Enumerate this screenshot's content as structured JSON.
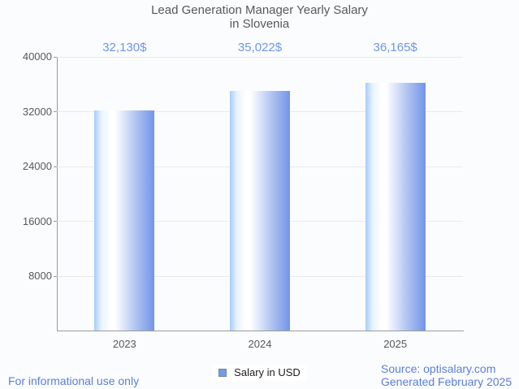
{
  "title": {
    "line1": "Lead Generation Manager Yearly Salary",
    "line2": "in Slovenia"
  },
  "chart_data": {
    "type": "bar",
    "categories": [
      "2023",
      "2024",
      "2025"
    ],
    "values": [
      32130,
      35022,
      36165
    ],
    "value_labels": [
      "32,130$",
      "35,022$",
      "36,165$"
    ],
    "series_name": "Salary in USD",
    "title": "Lead Generation Manager Yearly Salary in Slovenia",
    "xlabel": "",
    "ylabel": "",
    "ylim": [
      0,
      40000
    ],
    "yticks": [
      8000,
      16000,
      24000,
      32000,
      40000
    ],
    "ytick_labels": [
      "8000",
      "16000",
      "24000",
      "32000",
      "40000"
    ],
    "grid": true,
    "legend_position": "bottom"
  },
  "legend": {
    "label": "Salary in USD"
  },
  "footer": {
    "left": "For informational use only",
    "source": "Source: optisalary.com",
    "generated": "Generated February 2025"
  },
  "colors": {
    "accent_blue": "#6d96e8",
    "link_blue": "#5b7ed7",
    "text_gray": "#58585c",
    "grid_gray": "#e9eaed",
    "axis_gray": "#9a9a9a",
    "swatch_fill": "#6d9eeb",
    "swatch_border": "#76818e",
    "bar_gradient": [
      "#a5cdf8 0%",
      "#e9f3fd 12%",
      "#ffffff 27%",
      "#ffffff 34%",
      "#dce5f9 50%",
      "#b3c6f1 68%",
      "#7394e8 100%"
    ]
  }
}
